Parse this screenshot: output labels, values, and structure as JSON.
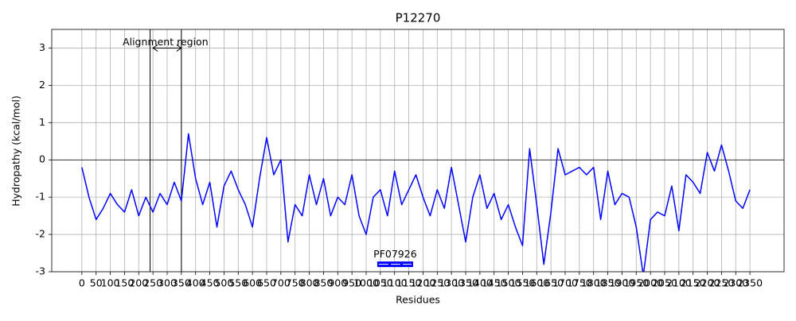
{
  "chart_data": {
    "type": "line",
    "title": "P12270",
    "xlabel": "Residues",
    "ylabel": "Hydropathy (kcal/mol)",
    "color": "blue",
    "x": [
      0,
      25,
      50,
      75,
      100,
      125,
      150,
      175,
      200,
      225,
      250,
      275,
      300,
      325,
      350,
      375,
      400,
      425,
      450,
      475,
      500,
      525,
      550,
      575,
      600,
      625,
      650,
      675,
      700,
      725,
      750,
      775,
      800,
      825,
      850,
      875,
      900,
      925,
      950,
      975,
      1000,
      1025,
      1050,
      1075,
      1100,
      1125,
      1150,
      1175,
      1200,
      1225,
      1250,
      1275,
      1300,
      1325,
      1350,
      1375,
      1400,
      1425,
      1450,
      1475,
      1500,
      1525,
      1550,
      1575,
      1600,
      1625,
      1650,
      1675,
      1700,
      1725,
      1750,
      1775,
      1800,
      1825,
      1850,
      1875,
      1900,
      1925,
      1950,
      1975,
      2000,
      2025,
      2050,
      2075,
      2100,
      2125,
      2150,
      2175,
      2200,
      2225,
      2250,
      2275,
      2300,
      2325,
      2350
    ],
    "values": [
      -0.2,
      -1.0,
      -1.6,
      -1.3,
      -0.9,
      -1.2,
      -1.4,
      -0.8,
      -1.5,
      -1.0,
      -1.4,
      -0.9,
      -1.2,
      -0.6,
      -1.1,
      0.7,
      -0.5,
      -1.2,
      -0.6,
      -1.8,
      -0.7,
      -0.3,
      -0.8,
      -1.2,
      -1.8,
      -0.5,
      0.6,
      -0.4,
      0.0,
      -2.2,
      -1.2,
      -1.5,
      -0.4,
      -1.2,
      -0.5,
      -1.5,
      -1.0,
      -1.2,
      -0.4,
      -1.5,
      -2.0,
      -1.0,
      -0.8,
      -1.5,
      -0.3,
      -1.2,
      -0.8,
      -0.4,
      -1.0,
      -1.5,
      -0.8,
      -1.3,
      -0.2,
      -1.2,
      -2.2,
      -1.0,
      -0.4,
      -1.3,
      -0.9,
      -1.6,
      -1.2,
      -1.8,
      -2.3,
      0.3,
      -1.2,
      -2.8,
      -1.4,
      0.3,
      -0.4,
      -0.3,
      -0.2,
      -0.4,
      -0.2,
      -1.6,
      -0.3,
      -1.2,
      -0.9,
      -1.0,
      -1.8,
      -3.1,
      -1.6,
      -1.4,
      -1.5,
      -0.7,
      -1.9,
      -0.4,
      -0.6,
      -0.9,
      0.2,
      -0.3,
      0.4,
      -0.3,
      -1.1,
      -1.3,
      -0.8
    ],
    "xlim": [
      -106,
      2470
    ],
    "ylim": [
      -3,
      3.5
    ],
    "xticks": [
      0,
      50,
      100,
      150,
      200,
      250,
      300,
      350,
      400,
      450,
      500,
      550,
      600,
      650,
      700,
      750,
      800,
      850,
      900,
      950,
      1000,
      1050,
      1100,
      1150,
      1200,
      1250,
      1300,
      1350,
      1400,
      1450,
      1500,
      1550,
      1600,
      1650,
      1700,
      1750,
      1800,
      1850,
      1900,
      1950,
      2000,
      2050,
      2100,
      2150,
      2200,
      2250,
      2300,
      2350
    ],
    "yticks": [
      -3,
      -2,
      -1,
      0,
      1,
      2,
      3
    ],
    "grid": true,
    "hline": 0,
    "vlines": [
      240,
      350
    ],
    "annotation": {
      "text": "Alignment region",
      "x": 294,
      "y": 3.15,
      "arrow_from": 250,
      "arrow_to": 350,
      "arrow_y": 3
    },
    "domain": {
      "label": "PF07926",
      "start": 1039,
      "end": 1165,
      "y": -2.8
    }
  }
}
